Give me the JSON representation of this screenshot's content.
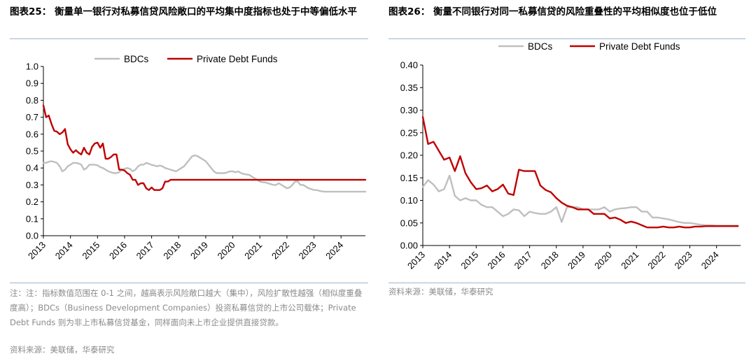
{
  "left": {
    "title": "图表25： 衡量单一银行对私募信贷风险敞口的平均集中度指标也处于中等偏低水平",
    "note": "注：注：指标数值范围在 0-1 之间，越高表示风险敞口越大（集中），风险扩散性越强（相似度重叠度高）；BDCs（Business Development Companies）投资私募信贷的上市公司载体；Private Debt Funds 则为非上市私募信贷基金，同样面向未上市企业提供直接贷款。",
    "source": "资料来源：美联储，华泰研究",
    "chart_data": {
      "type": "line",
      "x_ticks": [
        "2013",
        "2014",
        "2015",
        "2016",
        "2017",
        "2018",
        "2019",
        "2020",
        "2021",
        "2022",
        "2023",
        "2024"
      ],
      "x_range": [
        2013,
        2024.9
      ],
      "ylim": [
        0,
        1.0
      ],
      "y_ticks": [
        "0.0",
        "0.1",
        "0.2",
        "0.3",
        "0.4",
        "0.5",
        "0.6",
        "0.7",
        "0.8",
        "0.9",
        "1.0"
      ],
      "grid": false,
      "legend": "top-center",
      "series": [
        {
          "name": "BDCs",
          "color": "#bfbfbf",
          "x": [
            2013.0,
            2013.1,
            2013.2,
            2013.3,
            2013.4,
            2013.5,
            2013.6,
            2013.7,
            2013.8,
            2013.9,
            2014.0,
            2014.1,
            2014.2,
            2014.3,
            2014.4,
            2014.5,
            2014.6,
            2014.7,
            2014.8,
            2014.9,
            2015.0,
            2015.1,
            2015.2,
            2015.3,
            2015.4,
            2015.5,
            2015.6,
            2015.7,
            2015.8,
            2015.9,
            2016.0,
            2016.1,
            2016.2,
            2016.3,
            2016.4,
            2016.5,
            2016.6,
            2016.7,
            2016.8,
            2016.9,
            2017.0,
            2017.1,
            2017.2,
            2017.3,
            2017.4,
            2017.5,
            2017.6,
            2017.7,
            2017.8,
            2017.9,
            2018.0,
            2018.1,
            2018.2,
            2018.3,
            2018.4,
            2018.5,
            2018.6,
            2018.7,
            2018.8,
            2018.9,
            2019.0,
            2019.1,
            2019.2,
            2019.3,
            2019.4,
            2019.5,
            2019.6,
            2019.7,
            2019.8,
            2019.9,
            2020.0,
            2020.1,
            2020.2,
            2020.3,
            2020.4,
            2020.5,
            2020.6,
            2020.7,
            2020.8,
            2020.9,
            2021.0,
            2021.1,
            2021.2,
            2021.3,
            2021.4,
            2021.5,
            2021.6,
            2021.7,
            2021.8,
            2021.9,
            2022.0,
            2022.1,
            2022.2,
            2022.3,
            2022.4,
            2022.5,
            2022.6,
            2022.7,
            2022.8,
            2022.9,
            2023.0,
            2023.1,
            2023.2,
            2023.3,
            2023.4,
            2023.5,
            2023.6,
            2023.7,
            2023.8,
            2023.9,
            2024.0,
            2024.1,
            2024.2,
            2024.3,
            2024.4,
            2024.5,
            2024.6,
            2024.7,
            2024.8,
            2024.9
          ],
          "y": [
            0.43,
            0.431,
            0.437,
            0.44,
            0.436,
            0.43,
            0.41,
            0.38,
            0.39,
            0.41,
            0.42,
            0.43,
            0.43,
            0.427,
            0.42,
            0.39,
            0.4,
            0.42,
            0.42,
            0.419,
            0.416,
            0.405,
            0.4,
            0.39,
            0.38,
            0.375,
            0.37,
            0.37,
            0.375,
            0.39,
            0.395,
            0.4,
            0.395,
            0.38,
            0.39,
            0.41,
            0.42,
            0.42,
            0.43,
            0.425,
            0.418,
            0.415,
            0.41,
            0.415,
            0.41,
            0.4,
            0.395,
            0.39,
            0.385,
            0.38,
            0.39,
            0.4,
            0.41,
            0.43,
            0.45,
            0.47,
            0.475,
            0.47,
            0.46,
            0.45,
            0.44,
            0.42,
            0.4,
            0.38,
            0.37,
            0.37,
            0.37,
            0.37,
            0.375,
            0.38,
            0.38,
            0.375,
            0.38,
            0.37,
            0.365,
            0.362,
            0.36,
            0.35,
            0.34,
            0.33,
            0.32,
            0.316,
            0.315,
            0.31,
            0.305,
            0.3,
            0.3,
            0.31,
            0.3,
            0.29,
            0.28,
            0.285,
            0.3,
            0.32,
            0.32,
            0.3,
            0.3,
            0.29,
            0.28,
            0.275,
            0.27,
            0.27,
            0.265,
            0.262,
            0.26,
            0.26,
            0.26,
            0.26,
            0.26,
            0.26,
            0.26,
            0.26,
            0.26,
            0.26,
            0.26,
            0.26,
            0.26,
            0.26,
            0.26,
            0.26
          ]
        },
        {
          "name": "Private Debt Funds",
          "color": "#c00000",
          "x": [
            2013.0,
            2013.1,
            2013.2,
            2013.3,
            2013.4,
            2013.5,
            2013.6,
            2013.7,
            2013.8,
            2013.9,
            2014.0,
            2014.1,
            2014.2,
            2014.3,
            2014.4,
            2014.5,
            2014.6,
            2014.7,
            2014.8,
            2014.9,
            2015.0,
            2015.1,
            2015.2,
            2015.3,
            2015.4,
            2015.5,
            2015.6,
            2015.7,
            2015.8,
            2015.9,
            2016.0,
            2016.1,
            2016.2,
            2016.3,
            2016.4,
            2016.5,
            2016.6,
            2016.7,
            2016.8,
            2016.9,
            2017.0,
            2017.1,
            2017.2,
            2017.3,
            2017.4,
            2017.5,
            2017.6,
            2017.7,
            2017.8,
            2017.9,
            2018.0,
            2018.1,
            2018.2,
            2018.3,
            2018.4,
            2018.5,
            2018.6,
            2018.7,
            2018.8,
            2018.9,
            2019.0,
            2019.1,
            2019.2,
            2019.3,
            2019.4,
            2019.5,
            2019.6,
            2019.7,
            2019.8,
            2019.9,
            2020.0,
            2020.1,
            2020.2,
            2020.3,
            2020.4,
            2020.5,
            2020.6,
            2020.7,
            2020.8,
            2020.9,
            2021.0,
            2021.1,
            2021.2,
            2021.3,
            2021.4,
            2021.5,
            2021.6,
            2021.7,
            2021.8,
            2021.9,
            2022.0,
            2022.1,
            2022.2,
            2022.3,
            2022.4,
            2022.5,
            2022.6,
            2022.7,
            2022.8,
            2022.9,
            2023.0,
            2023.1,
            2023.2,
            2023.3,
            2023.4,
            2023.5,
            2023.6,
            2023.7,
            2023.8,
            2023.9,
            2024.0,
            2024.1,
            2024.2,
            2024.3,
            2024.4,
            2024.5,
            2024.6,
            2024.7,
            2024.8,
            2024.9
          ],
          "y": [
            0.77,
            0.7,
            0.71,
            0.66,
            0.62,
            0.615,
            0.6,
            0.61,
            0.63,
            0.54,
            0.51,
            0.49,
            0.505,
            0.49,
            0.48,
            0.52,
            0.49,
            0.48,
            0.525,
            0.545,
            0.55,
            0.52,
            0.545,
            0.455,
            0.455,
            0.465,
            0.48,
            0.48,
            0.39,
            0.39,
            0.385,
            0.37,
            0.36,
            0.33,
            0.33,
            0.3,
            0.31,
            0.31,
            0.28,
            0.27,
            0.285,
            0.27,
            0.27,
            0.27,
            0.28,
            0.32,
            0.32,
            0.33,
            0.33,
            0.33,
            0.33,
            0.33,
            0.33,
            0.33,
            0.33,
            0.33,
            0.33,
            0.33,
            0.33,
            0.33,
            0.33,
            0.33,
            0.33,
            0.33,
            0.33,
            0.33,
            0.33,
            0.33,
            0.33,
            0.33,
            0.33,
            0.33,
            0.33,
            0.33,
            0.33,
            0.33,
            0.33,
            0.33,
            0.33,
            0.33,
            0.33,
            0.33,
            0.33,
            0.33,
            0.33,
            0.33,
            0.33,
            0.33,
            0.33,
            0.33,
            0.33,
            0.33,
            0.33,
            0.33,
            0.33,
            0.33,
            0.33,
            0.33,
            0.33,
            0.33,
            0.33,
            0.33,
            0.33,
            0.33,
            0.33,
            0.33,
            0.33,
            0.33,
            0.33,
            0.33,
            0.33,
            0.33,
            0.33,
            0.33,
            0.33,
            0.33,
            0.33,
            0.33,
            0.33,
            0.33
          ]
        }
      ]
    }
  },
  "right": {
    "title": "图表26： 衡量不同银行对同一私募信贷的风险重叠性的平均相似度也位于低位",
    "source": "资料来源：美联储，华泰研究",
    "chart_data": {
      "type": "line",
      "x_ticks": [
        "2013",
        "2014",
        "2015",
        "2016",
        "2017",
        "2018",
        "2019",
        "2020",
        "2021",
        "2022",
        "2023",
        "2024"
      ],
      "x_range": [
        2013,
        2024.9
      ],
      "ylim": [
        0,
        0.4
      ],
      "y_ticks": [
        "0.00",
        "0.05",
        "0.10",
        "0.15",
        "0.20",
        "0.25",
        "0.30",
        "0.35",
        "0.40"
      ],
      "grid": false,
      "legend": "top-center",
      "series": [
        {
          "name": "BDCs",
          "color": "#bfbfbf",
          "x": [
            2013.0,
            2013.2,
            2013.4,
            2013.6,
            2013.8,
            2014.0,
            2014.2,
            2014.4,
            2014.6,
            2014.8,
            2015.0,
            2015.2,
            2015.4,
            2015.6,
            2015.8,
            2016.0,
            2016.2,
            2016.4,
            2016.6,
            2016.8,
            2017.0,
            2017.2,
            2017.4,
            2017.6,
            2017.8,
            2018.0,
            2018.2,
            2018.4,
            2018.6,
            2018.8,
            2019.0,
            2019.2,
            2019.4,
            2019.6,
            2019.8,
            2020.0,
            2020.2,
            2020.4,
            2020.6,
            2020.8,
            2021.0,
            2021.2,
            2021.4,
            2021.6,
            2021.8,
            2022.0,
            2022.2,
            2022.4,
            2022.6,
            2022.8,
            2023.0,
            2023.2,
            2023.4,
            2023.6,
            2023.8,
            2024.0,
            2024.2,
            2024.4,
            2024.6,
            2024.8
          ],
          "y": [
            0.13,
            0.145,
            0.135,
            0.12,
            0.125,
            0.155,
            0.11,
            0.1,
            0.105,
            0.1,
            0.1,
            0.09,
            0.085,
            0.085,
            0.075,
            0.065,
            0.07,
            0.08,
            0.078,
            0.065,
            0.075,
            0.072,
            0.07,
            0.07,
            0.075,
            0.085,
            0.052,
            0.085,
            0.085,
            0.085,
            0.08,
            0.08,
            0.08,
            0.08,
            0.085,
            0.075,
            0.08,
            0.082,
            0.083,
            0.085,
            0.085,
            0.075,
            0.075,
            0.062,
            0.062,
            0.06,
            0.058,
            0.055,
            0.052,
            0.05,
            0.05,
            0.048,
            0.046,
            0.045,
            0.045,
            0.044,
            0.044,
            0.044,
            0.044,
            0.044
          ]
        },
        {
          "name": "Private Debt Funds",
          "color": "#c00000",
          "x": [
            2013.0,
            2013.2,
            2013.4,
            2013.6,
            2013.8,
            2014.0,
            2014.2,
            2014.4,
            2014.6,
            2014.8,
            2015.0,
            2015.2,
            2015.4,
            2015.6,
            2015.8,
            2016.0,
            2016.2,
            2016.4,
            2016.6,
            2016.8,
            2017.0,
            2017.2,
            2017.4,
            2017.6,
            2017.8,
            2018.0,
            2018.2,
            2018.4,
            2018.6,
            2018.8,
            2019.0,
            2019.2,
            2019.4,
            2019.6,
            2019.8,
            2020.0,
            2020.2,
            2020.4,
            2020.6,
            2020.8,
            2021.0,
            2021.2,
            2021.4,
            2021.6,
            2021.8,
            2022.0,
            2022.2,
            2022.4,
            2022.6,
            2022.8,
            2023.0,
            2023.2,
            2023.4,
            2023.6,
            2023.8,
            2024.0,
            2024.2,
            2024.4,
            2024.6,
            2024.8
          ],
          "y": [
            0.285,
            0.225,
            0.23,
            0.21,
            0.19,
            0.195,
            0.165,
            0.198,
            0.16,
            0.14,
            0.125,
            0.127,
            0.133,
            0.12,
            0.125,
            0.135,
            0.115,
            0.112,
            0.168,
            0.165,
            0.165,
            0.165,
            0.133,
            0.123,
            0.118,
            0.105,
            0.095,
            0.088,
            0.085,
            0.08,
            0.08,
            0.08,
            0.07,
            0.07,
            0.07,
            0.06,
            0.062,
            0.057,
            0.05,
            0.053,
            0.05,
            0.045,
            0.04,
            0.04,
            0.04,
            0.042,
            0.04,
            0.04,
            0.042,
            0.04,
            0.04,
            0.042,
            0.042,
            0.043,
            0.043,
            0.043,
            0.043,
            0.043,
            0.043,
            0.043
          ]
        }
      ]
    }
  }
}
